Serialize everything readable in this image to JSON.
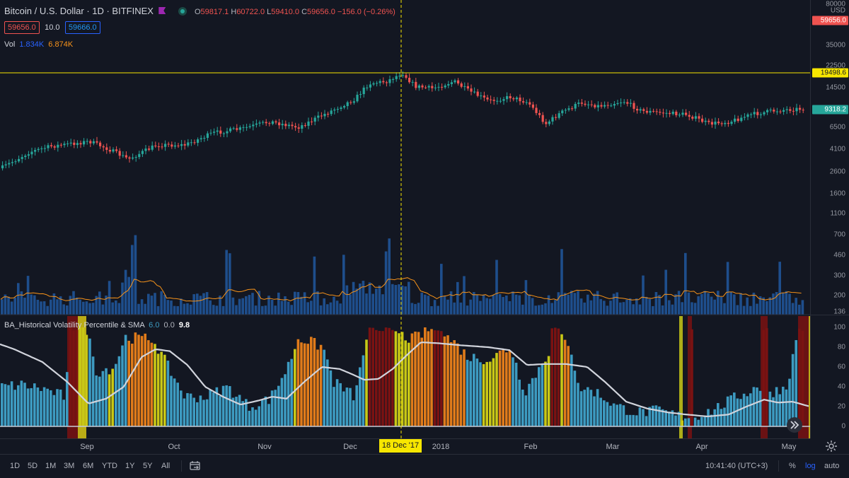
{
  "header": {
    "symbol": "Bitcoin / U.S. Dollar · 1D · BITFINEX",
    "open_label": "O",
    "open": "59817.1",
    "high_label": "H",
    "high": "60722.0",
    "low_label": "L",
    "low": "59410.0",
    "close_label": "C",
    "close": "59656.0",
    "change": "−156.0 (−0.26%)",
    "bid": "59656.0",
    "spread": "10.0",
    "ask": "59666.0",
    "vol_label": "Vol",
    "vol1": "1.834K",
    "vol2": "6.874K"
  },
  "indicator": {
    "name": "BA_Historical Volatility Percentile & SMA",
    "v1": "6.0",
    "v2": "0.0",
    "v3": "9.8"
  },
  "price_axis": {
    "currency": "USD",
    "ticks": [
      "80000",
      "35000",
      "22500",
      "14500",
      "6500",
      "4100",
      "2600",
      "1600",
      "1100",
      "700",
      "460",
      "300",
      "200",
      "136"
    ],
    "last_price_label": "59656.0",
    "hline_label": "19498.6",
    "current_label": "9318.2"
  },
  "indicator_axis": {
    "ticks": [
      "100",
      "80",
      "60",
      "40",
      "20",
      "0"
    ]
  },
  "time_axis": {
    "ticks": [
      "Sep",
      "Oct",
      "Nov",
      "Dec",
      "2018",
      "Feb",
      "Mar",
      "Apr",
      "May"
    ],
    "crosshair_label": "18 Dec '17"
  },
  "bottom_bar": {
    "ranges": [
      "1D",
      "5D",
      "1M",
      "3M",
      "6M",
      "YTD",
      "1Y",
      "5Y",
      "All"
    ],
    "clock": "10:41:40 (UTC+3)",
    "percent": "%",
    "log": "log",
    "auto": "auto"
  },
  "colors": {
    "background": "#131722",
    "up": "#26a69a",
    "down": "#ef5350",
    "volume": "#1e4e8c",
    "volume_ma": "#f7931a",
    "hvp_blue": "#3d9bc1",
    "hvp_orange": "#e07b1a",
    "hvp_yellow": "#c9c816",
    "hvp_red": "#7a1212",
    "sma": "#d1d4dc",
    "hline": "#f7e600"
  },
  "icons": [
    "market-status-icon",
    "snapshot-icon",
    "calendar-range-icon",
    "settings-icon",
    "scroll-right-icon"
  ]
}
